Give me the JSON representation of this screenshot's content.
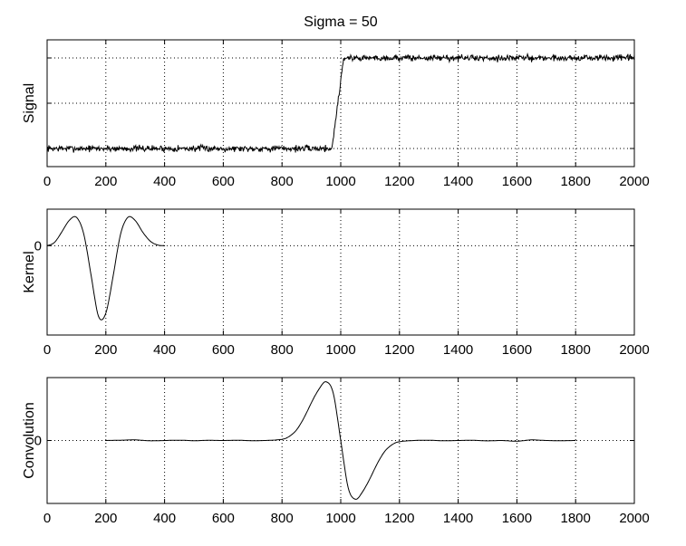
{
  "title": "Sigma = 50",
  "chart_data": [
    {
      "type": "line",
      "name": "signal-panel",
      "ylabel": "Signal",
      "xlim": [
        0,
        2000
      ],
      "ylim": [
        -0.2,
        1.2
      ],
      "xticks": [
        0,
        200,
        400,
        600,
        800,
        1000,
        1200,
        1400,
        1600,
        1800,
        2000
      ],
      "yticks": [
        0,
        0.5,
        1
      ],
      "ytick_labels": [
        "",
        "",
        ""
      ],
      "grid": true,
      "series": [
        {
          "x": [
            0,
            970,
            1010,
            2000
          ],
          "y": [
            0,
            0,
            1,
            1
          ],
          "noise": 0.025,
          "seed": 7
        }
      ]
    },
    {
      "type": "line",
      "name": "kernel-panel",
      "ylabel": "Kernel",
      "xlim": [
        0,
        2000
      ],
      "ylim": [
        -1.1,
        0.45
      ],
      "xticks": [
        0,
        200,
        400,
        600,
        800,
        1000,
        1200,
        1400,
        1600,
        1800,
        2000
      ],
      "yticks": [
        0
      ],
      "ytick_labels": [
        "0"
      ],
      "grid": true,
      "series": [
        {
          "x": [
            0,
            25,
            50,
            75,
            100,
            125,
            150,
            175,
            200,
            225,
            250,
            275,
            300,
            325,
            350,
            375,
            400
          ],
          "y": [
            0.0,
            0.04,
            0.17,
            0.31,
            0.35,
            0.14,
            -0.37,
            -0.87,
            -0.83,
            -0.37,
            0.14,
            0.35,
            0.31,
            0.17,
            0.06,
            0.01,
            0.0
          ]
        }
      ]
    },
    {
      "type": "line",
      "name": "convolution-panel",
      "ylabel": "Convolution",
      "xlim": [
        0,
        2000
      ],
      "ylim": [
        -1.05,
        1.05
      ],
      "xticks": [
        0,
        200,
        400,
        600,
        800,
        1000,
        1200,
        1400,
        1600,
        1800,
        2000
      ],
      "yticks": [
        0
      ],
      "ytick_labels": [
        "0"
      ],
      "grid": true,
      "series": [
        {
          "x": [
            200,
            250,
            300,
            350,
            400,
            450,
            500,
            550,
            600,
            650,
            700,
            750,
            800,
            825,
            850,
            875,
            900,
            925,
            950,
            975,
            1000,
            1025,
            1050,
            1075,
            1100,
            1125,
            1150,
            1175,
            1200,
            1250,
            1300,
            1350,
            1400,
            1450,
            1500,
            1550,
            1600,
            1650,
            1700,
            1750,
            1800
          ],
          "y": [
            0.0,
            0.005,
            0.01,
            -0.005,
            0.0,
            0.005,
            -0.003,
            0.003,
            0.0,
            0.004,
            -0.003,
            0.002,
            0.02,
            0.07,
            0.18,
            0.38,
            0.63,
            0.85,
            0.98,
            0.78,
            0.0,
            -0.78,
            -0.98,
            -0.85,
            -0.63,
            -0.38,
            -0.18,
            -0.07,
            -0.02,
            0.0,
            0.005,
            -0.004,
            0.0,
            0.004,
            -0.006,
            0.0,
            -0.012,
            0.01,
            0.0,
            -0.003,
            0.0
          ]
        }
      ]
    }
  ]
}
